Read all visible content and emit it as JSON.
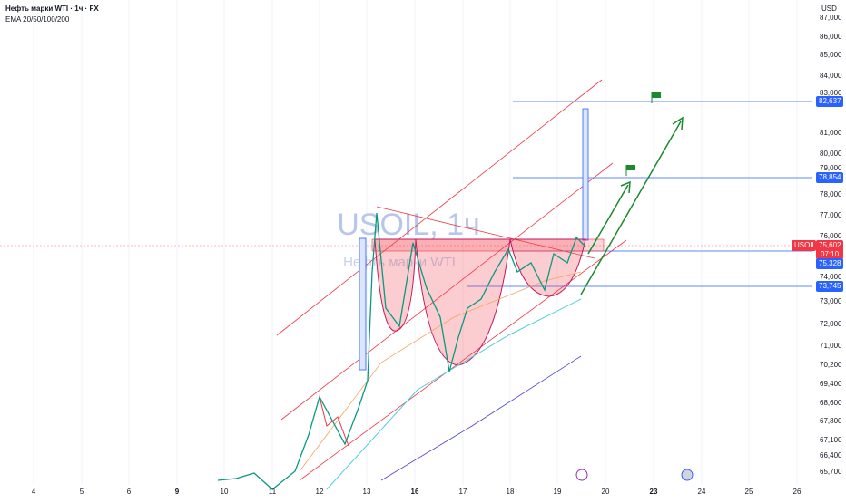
{
  "header": {
    "title": "Нефть марки WTI · 1ч · FX",
    "indicator": "EMA 20/50/100/200",
    "currency": "USD"
  },
  "watermark": {
    "symbol": "USOIL, 1ч",
    "name": "Нефть марки WTI"
  },
  "price_axis": [
    "87,000",
    "86,000",
    "85,000",
    "84,000",
    "83,000",
    "81,000",
    "80,000",
    "79,000",
    "78,000",
    "77,000",
    "76,000",
    "74,000",
    "73,000",
    "72,000",
    "71,000",
    "70,200",
    "69,400",
    "68,600",
    "67,800",
    "67,100",
    "66,400",
    "65,700"
  ],
  "badges": {
    "target_high": "82,637",
    "target_mid": "78,854",
    "symbol": "USOIL",
    "last_price": "75,602",
    "countdown": "07:10",
    "neckline": "75,328",
    "support": "73,745"
  },
  "date_axis": [
    "4",
    "5",
    "6",
    "9",
    "10",
    "11",
    "12",
    "13",
    "16",
    "17",
    "18",
    "19",
    "20",
    "23",
    "24",
    "25",
    "26"
  ]
}
